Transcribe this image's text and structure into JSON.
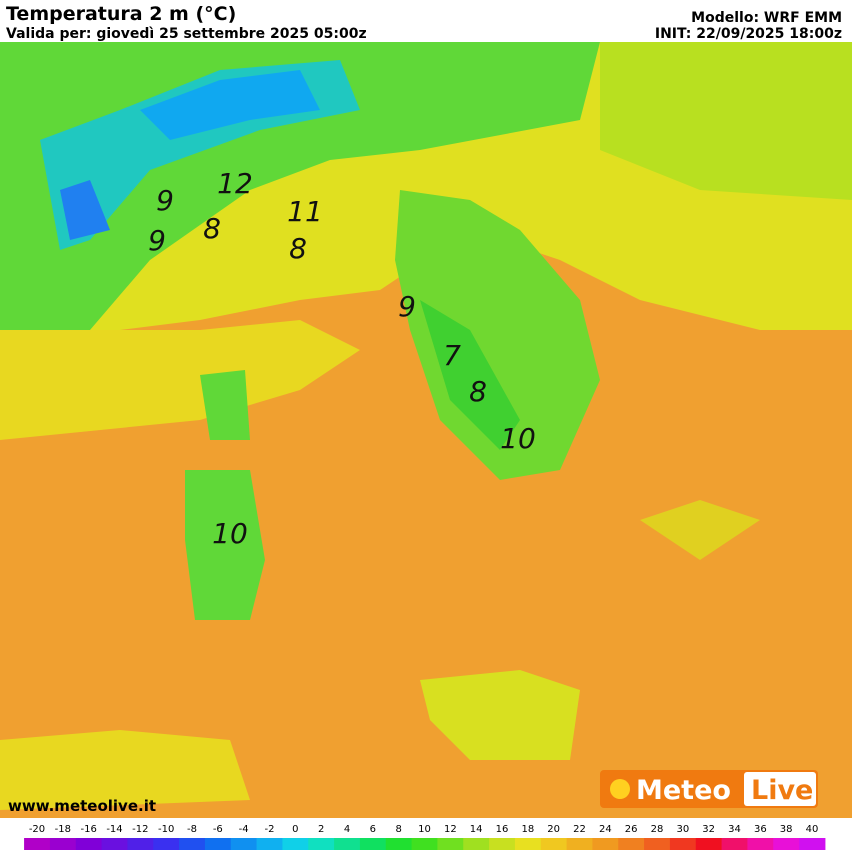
{
  "header": {
    "title": "Temperatura 2 m (°C)",
    "subtitle": "Valida per: giovedì 25 settembre 2025 05:00z",
    "model": "Modello: WRF EMM",
    "init": "INIT: 22/09/2025 18:00z"
  },
  "map": {
    "labels": [
      "12",
      "9",
      "9",
      "8",
      "11",
      "8",
      "9",
      "7",
      "8",
      "10",
      "10"
    ]
  },
  "footer": {
    "website": "www.meteolive.it",
    "logo_left": "Meteo",
    "logo_right": "Live"
  },
  "colorbar": {
    "ticks": [
      -20,
      -18,
      -16,
      -14,
      -12,
      -10,
      -8,
      -6,
      -4,
      -2,
      0,
      2,
      4,
      6,
      8,
      10,
      12,
      14,
      16,
      18,
      20,
      22,
      24,
      26,
      28,
      30,
      32,
      34,
      36,
      38,
      40
    ],
    "colors": [
      "#b000c8",
      "#9a00d0",
      "#8000d8",
      "#6a10e0",
      "#5020e8",
      "#3a30f0",
      "#2050f0",
      "#1070f0",
      "#1090f0",
      "#10b0f0",
      "#10d0e8",
      "#10e0c0",
      "#10e090",
      "#10e060",
      "#20e030",
      "#40e020",
      "#70e020",
      "#a0e020",
      "#c8e020",
      "#e8e020",
      "#f0c820",
      "#f0b020",
      "#f09a20",
      "#f08020",
      "#f06020",
      "#f03820",
      "#f01020",
      "#f0106a",
      "#f010a8",
      "#e810d8",
      "#d010f0"
    ]
  }
}
